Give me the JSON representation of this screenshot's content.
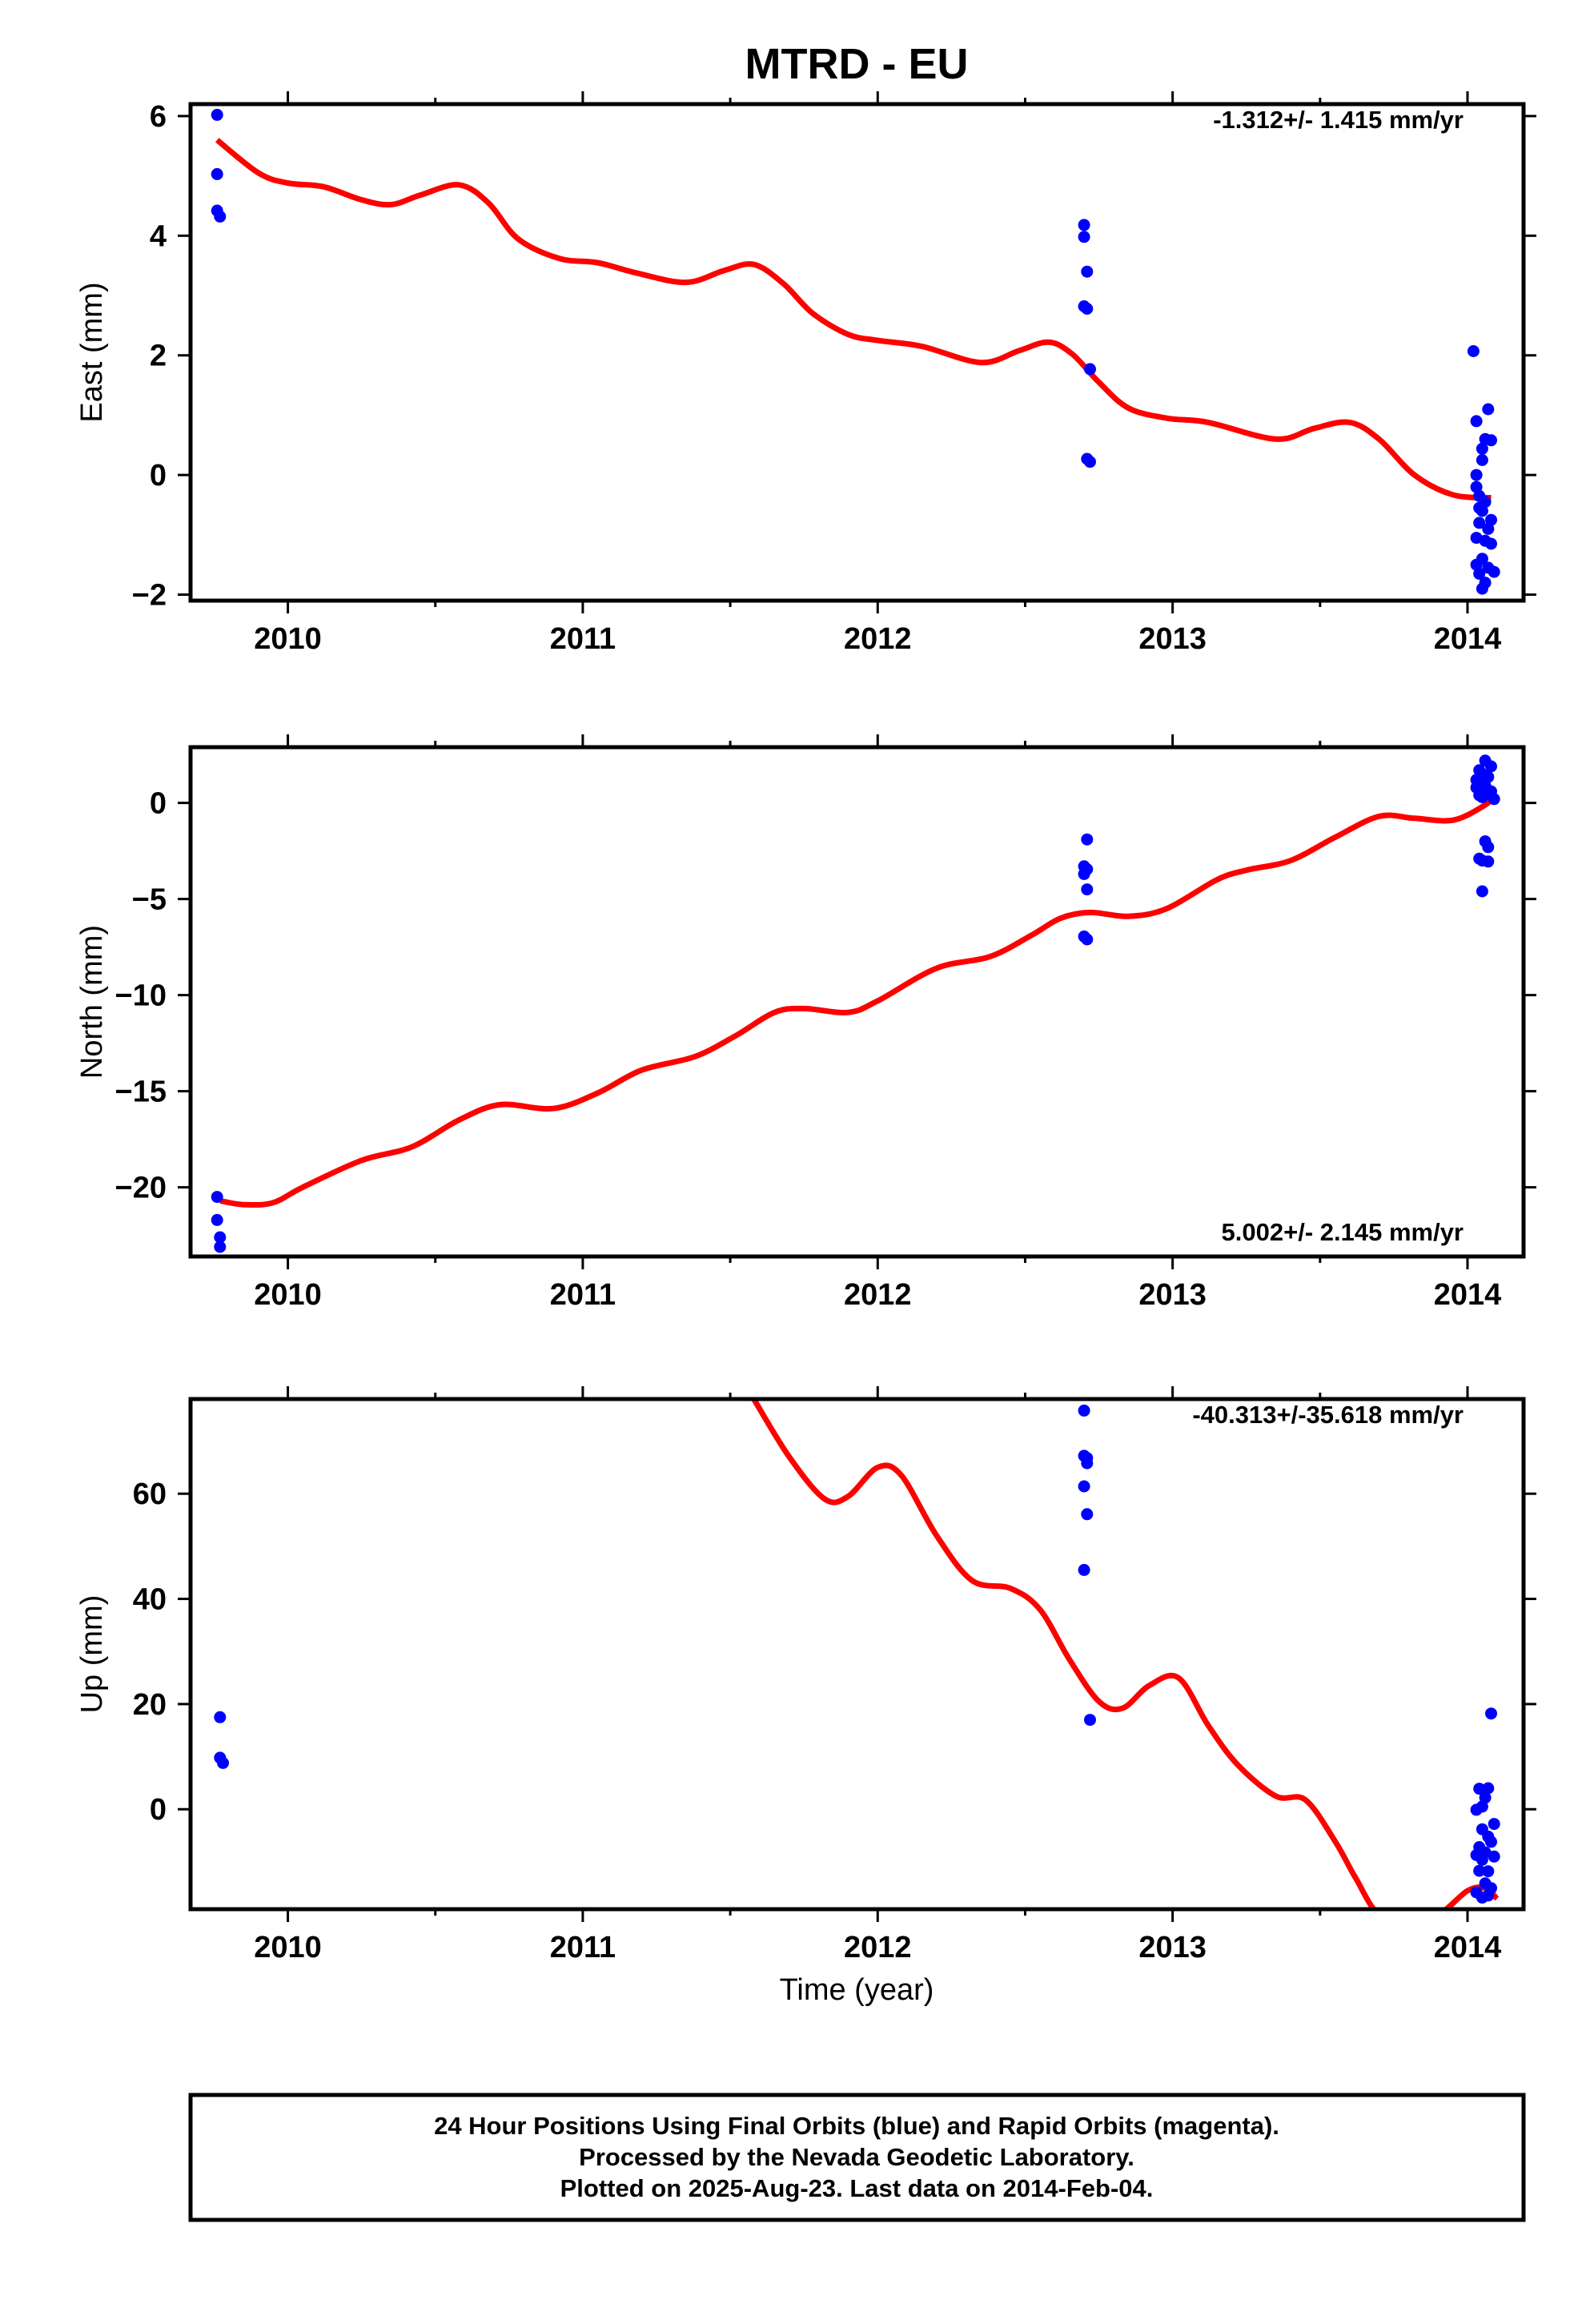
{
  "title": "MTRD - EU",
  "xlabel": "Time (year)",
  "footer": [
    "24 Hour Positions Using Final Orbits (blue) and Rapid Orbits (magenta).",
    "Processed by the Nevada Geodetic Laboratory.",
    "Plotted on 2025-Aug-23. Last data on 2014-Feb-04."
  ],
  "colors": {
    "points": "#0000ff",
    "model": "#ff0000",
    "frame": "#000000"
  },
  "chart_data": [
    {
      "type": "scatter",
      "ylabel": "East (mm)",
      "rate": "-1.312+/- 1.415 mm/yr",
      "xlim": [
        2009.67,
        2014.19
      ],
      "ylim": [
        -2.1,
        6.2
      ],
      "xticks": [
        2010,
        2011,
        2012,
        2013,
        2014
      ],
      "yticks": [
        -2,
        0,
        2,
        4,
        6
      ],
      "ytick_labels": [
        "−2",
        "0",
        "2",
        "4",
        "6"
      ],
      "series": [
        {
          "kind": "points",
          "x": [
            2009.76,
            2009.76,
            2009.76,
            2009.77,
            2012.7,
            2012.7,
            2012.71,
            2012.7,
            2012.71,
            2012.72,
            2012.71,
            2012.72,
            2014.02,
            2014.03,
            2014.05,
            2014.07,
            2014.05,
            2014.03,
            2014.06,
            2014.03,
            2014.04,
            2014.08,
            2014.06,
            2014.04,
            2014.05,
            2014.08,
            2014.04,
            2014.07,
            2014.03,
            2014.06,
            2014.08,
            2014.05,
            2014.03,
            2014.07,
            2014.04,
            2014.09,
            2014.06,
            2014.05
          ],
          "y": [
            6.02,
            5.03,
            4.42,
            4.32,
            4.18,
            3.98,
            3.4,
            2.82,
            2.78,
            1.77,
            0.27,
            0.22,
            2.07,
            0.9,
            0.44,
            1.1,
            0.25,
            0.0,
            0.6,
            -0.2,
            -0.35,
            0.58,
            -0.45,
            -0.55,
            -0.6,
            -0.75,
            -0.8,
            -0.9,
            -1.05,
            -1.1,
            -1.15,
            -1.4,
            -1.5,
            -1.55,
            -1.65,
            -1.62,
            -1.8,
            -1.9
          ]
        },
        {
          "kind": "model",
          "x": [
            2009.76,
            2009.9,
            2010.0,
            2010.12,
            2010.25,
            2010.35,
            2010.45,
            2010.58,
            2010.68,
            2010.78,
            2010.92,
            2011.05,
            2011.18,
            2011.35,
            2011.48,
            2011.58,
            2011.68,
            2011.78,
            2011.9,
            2012.0,
            2012.15,
            2012.35,
            2012.48,
            2012.58,
            2012.66,
            2012.75,
            2012.85,
            2012.98,
            2013.12,
            2013.35,
            2013.48,
            2013.6,
            2013.7,
            2013.82,
            2013.95,
            2014.08
          ],
          "y": [
            5.6,
            5.05,
            4.88,
            4.82,
            4.6,
            4.52,
            4.68,
            4.85,
            4.55,
            3.95,
            3.62,
            3.55,
            3.38,
            3.22,
            3.42,
            3.52,
            3.2,
            2.7,
            2.35,
            2.25,
            2.15,
            1.88,
            2.08,
            2.22,
            2.02,
            1.55,
            1.12,
            0.95,
            0.88,
            0.6,
            0.78,
            0.88,
            0.6,
            0.0,
            -0.33,
            -0.38
          ]
        }
      ]
    },
    {
      "type": "scatter",
      "ylabel": "North (mm)",
      "rate": "5.002+/- 2.145 mm/yr",
      "xlim": [
        2009.67,
        2014.19
      ],
      "ylim": [
        -23.6,
        2.9
      ],
      "xticks": [
        2010,
        2011,
        2012,
        2013,
        2014
      ],
      "yticks": [
        -20,
        -15,
        -10,
        -5,
        0
      ],
      "ytick_labels": [
        "−20",
        "−15",
        "−10",
        "−5",
        "0"
      ],
      "series": [
        {
          "kind": "points",
          "x": [
            2009.76,
            2009.76,
            2009.77,
            2009.77,
            2012.71,
            2012.7,
            2012.71,
            2012.7,
            2012.71,
            2012.7,
            2012.71,
            2014.03,
            2014.04,
            2014.05,
            2014.06,
            2014.08,
            2014.05,
            2014.07,
            2014.03,
            2014.04,
            2014.06,
            2014.08,
            2014.05,
            2014.07,
            2014.09,
            2014.06,
            2014.04,
            2014.07,
            2014.05,
            2014.07,
            2014.05
          ],
          "y": [
            -20.5,
            -21.7,
            -22.6,
            -23.1,
            -1.9,
            -3.3,
            -3.45,
            -3.7,
            -4.5,
            -6.95,
            -7.1,
            1.2,
            1.7,
            1.5,
            2.2,
            1.9,
            1.0,
            1.35,
            0.8,
            0.4,
            0.9,
            0.6,
            0.3,
            0.5,
            0.2,
            -2.0,
            -2.9,
            -2.3,
            -3.0,
            -3.05,
            -4.6
          ]
        },
        {
          "kind": "model",
          "x": [
            2009.77,
            2009.85,
            2009.95,
            2010.05,
            2010.25,
            2010.42,
            2010.58,
            2010.72,
            2010.9,
            2011.05,
            2011.2,
            2011.38,
            2011.52,
            2011.65,
            2011.75,
            2011.9,
            2012.0,
            2012.2,
            2012.38,
            2012.52,
            2012.62,
            2012.72,
            2012.85,
            2012.98,
            2013.15,
            2013.25,
            2013.4,
            2013.55,
            2013.7,
            2013.82,
            2013.95,
            2014.05,
            2014.1
          ],
          "y": [
            -20.7,
            -20.9,
            -20.8,
            -20.0,
            -18.6,
            -17.9,
            -16.5,
            -15.7,
            -15.9,
            -15.1,
            -13.9,
            -13.2,
            -12.1,
            -10.9,
            -10.7,
            -10.9,
            -10.3,
            -8.6,
            -8.0,
            -6.9,
            -6.0,
            -5.7,
            -5.9,
            -5.5,
            -4.0,
            -3.5,
            -3.0,
            -1.8,
            -0.7,
            -0.8,
            -0.9,
            -0.2,
            0.4
          ]
        }
      ]
    },
    {
      "type": "scatter",
      "ylabel": "Up (mm)",
      "rate": "-40.313+/-35.618 mm/yr",
      "xlim": [
        2009.67,
        2014.19
      ],
      "ylim": [
        -19,
        78
      ],
      "xticks": [
        2010,
        2011,
        2012,
        2013,
        2014
      ],
      "yticks": [
        0,
        20,
        40,
        60
      ],
      "ytick_labels": [
        "0",
        "20",
        "40",
        "60"
      ],
      "series": [
        {
          "kind": "points",
          "x": [
            2009.77,
            2009.77,
            2009.78,
            2012.7,
            2012.7,
            2012.71,
            2012.71,
            2012.7,
            2012.71,
            2012.7,
            2012.72,
            2014.08,
            2014.04,
            2014.06,
            2014.07,
            2014.05,
            2014.09,
            2014.03,
            2014.05,
            2014.07,
            2014.04,
            2014.08,
            2014.06,
            2014.03,
            2014.05,
            2014.09,
            2014.04,
            2014.07,
            2014.06,
            2014.08,
            2014.03,
            2014.05,
            2014.07
          ],
          "y": [
            17.5,
            9.8,
            8.8,
            75.8,
            67.2,
            66.8,
            65.8,
            61.4,
            56.1,
            45.5,
            17.0,
            18.2,
            3.9,
            2.2,
            4.0,
            0.5,
            -2.8,
            -0.1,
            -3.8,
            -5.2,
            -7.2,
            -6.2,
            -8.2,
            -8.7,
            -9.6,
            -9.0,
            -11.7,
            -11.8,
            -14.1,
            -15.0,
            -15.8,
            -16.8,
            -16.4
          ]
        },
        {
          "kind": "model",
          "x": [
            2011.58,
            2011.7,
            2011.82,
            2011.9,
            2012.0,
            2012.08,
            2012.2,
            2012.32,
            2012.45,
            2012.55,
            2012.65,
            2012.75,
            2012.83,
            2012.92,
            2013.02,
            2013.12,
            2013.22,
            2013.35,
            2013.45,
            2013.55,
            2013.62,
            2013.7,
            2013.8,
            2013.9,
            2014.0,
            2014.06,
            2014.1
          ],
          "y": [
            78,
            67,
            59,
            59.5,
            65,
            63.5,
            52,
            43.5,
            42,
            38,
            28.5,
            20.5,
            19.2,
            23.5,
            25,
            16,
            8.5,
            2.5,
            1.8,
            -6,
            -13,
            -20,
            -20,
            -20,
            -15.5,
            -15,
            -17
          ]
        }
      ]
    }
  ]
}
